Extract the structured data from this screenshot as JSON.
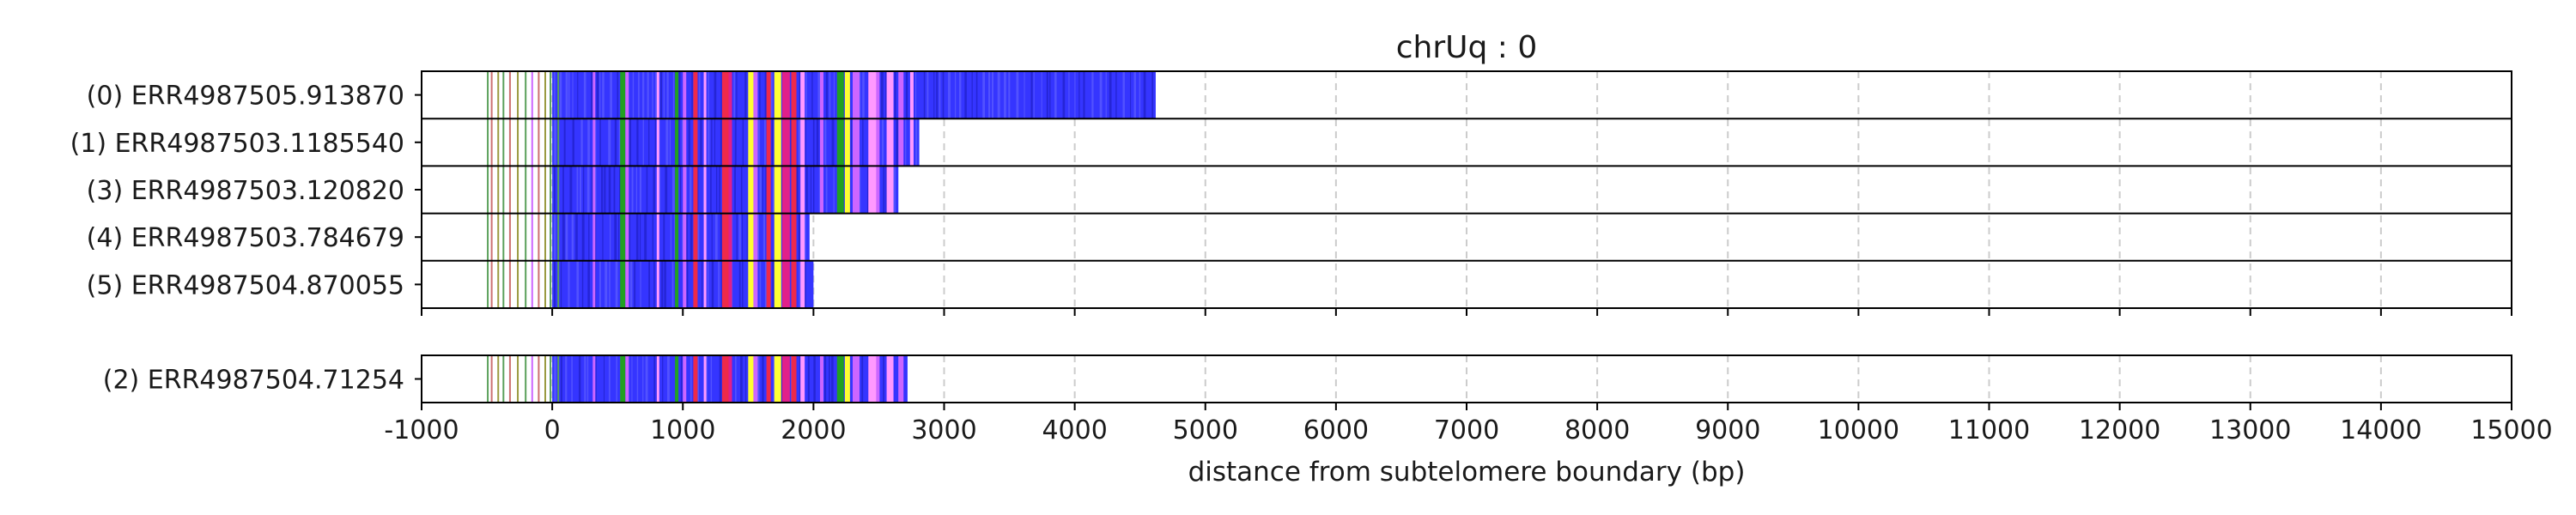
{
  "chart_data": {
    "type": "bar",
    "title": "chrUq : 0",
    "xlabel": "distance from subtelomere boundary (bp)",
    "xlim": [
      -1000,
      15000
    ],
    "xticks": [
      -1000,
      0,
      1000,
      2000,
      3000,
      4000,
      5000,
      6000,
      7000,
      8000,
      9000,
      10000,
      11000,
      12000,
      13000,
      14000,
      15000
    ],
    "xtick_labels": [
      "-1000",
      "0",
      "1000",
      "2000",
      "3000",
      "4000",
      "5000",
      "6000",
      "7000",
      "8000",
      "9000",
      "10000",
      "11000",
      "12000",
      "13000",
      "14000",
      "15000"
    ],
    "grid": "vertical dashed",
    "colors": {
      "repeat": "#3535ff",
      "repeat_dark": "#2222cc",
      "green": "#22a022",
      "red": "#ee2a4a",
      "magenta": "#e0208a",
      "yellow": "#ffff33",
      "violet": "#cc66ff",
      "pink": "#ff99ff",
      "olive": "#9a9a40",
      "thin_green": "#5aa05a",
      "thin_red": "#cc7070"
    },
    "panels": [
      {
        "name": "group-main",
        "reads": [
          {
            "label": "(0) ERR4987505.913870",
            "start": -500,
            "end": 4620
          },
          {
            "label": "(1) ERR4987503.1185540",
            "start": -500,
            "end": 2810
          },
          {
            "label": "(3) ERR4987503.120820",
            "start": -500,
            "end": 2650
          },
          {
            "label": "(4) ERR4987503.784679",
            "start": -500,
            "end": 1970
          },
          {
            "label": "(5) ERR4987504.870055",
            "start": -500,
            "end": 2000
          }
        ]
      },
      {
        "name": "group-secondary",
        "reads": [
          {
            "label": "(2) ERR4987504.71254",
            "start": -500,
            "end": 2720
          }
        ]
      }
    ]
  }
}
